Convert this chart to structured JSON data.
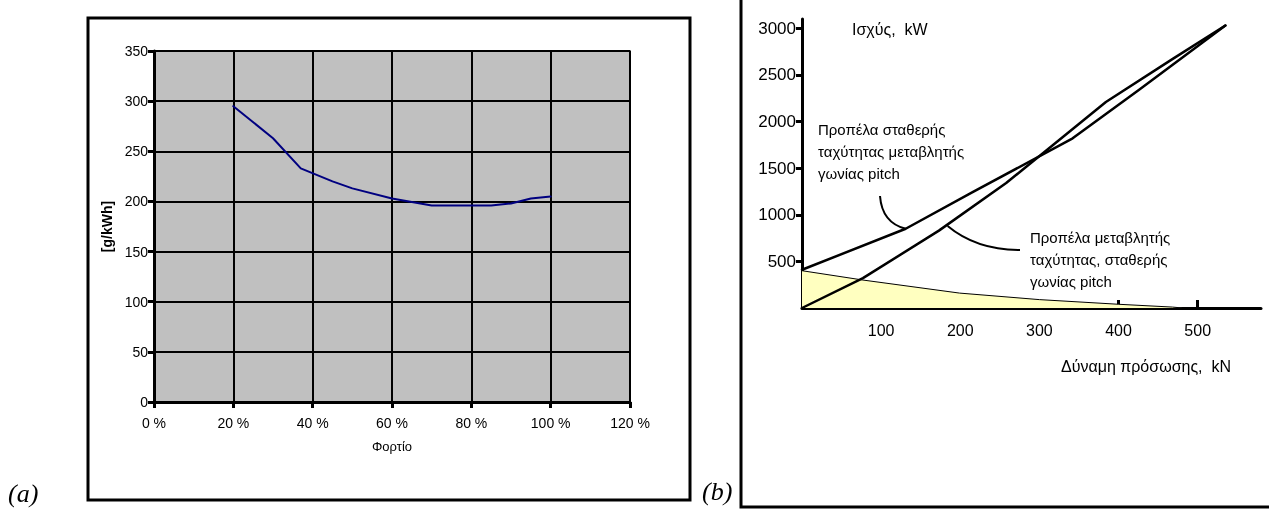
{
  "chart_data": [
    {
      "type": "line",
      "xlabel": "Φορτίο",
      "ylabel": "[g/kWh]",
      "x": [
        20,
        30,
        37,
        45,
        50,
        60,
        70,
        80,
        85,
        90,
        95,
        100
      ],
      "series": [
        {
          "color": "#000080",
          "values": [
            295,
            263,
            233,
            220,
            213,
            203,
            196,
            196,
            196,
            198,
            203,
            205
          ]
        }
      ],
      "xlim": [
        0,
        120
      ],
      "xticks": [
        {
          "value": 0,
          "label": "0 %"
        },
        {
          "value": 20,
          "label": "20 %"
        },
        {
          "value": 40,
          "label": "40 %"
        },
        {
          "value": 60,
          "label": "60 %"
        },
        {
          "value": 80,
          "label": "80 %"
        },
        {
          "value": 100,
          "label": "100 %"
        },
        {
          "value": 120,
          "label": "120 %"
        }
      ],
      "ylim": [
        0,
        350
      ],
      "yticks": [
        0,
        50,
        100,
        150,
        200,
        250,
        300,
        350
      ],
      "grid": true,
      "marker": "none",
      "annotations": [
        "(a)"
      ]
    },
    {
      "type": "line",
      "xlabel": "Δύναμη πρόσωσης,  kN",
      "ylabel": "Ισχύς,  kW",
      "series": [
        {
          "color": "#000000",
          "x": [
            0,
            131,
            215,
            342,
            426,
            535
          ],
          "values": [
            410,
            850,
            1240,
            1820,
            2340,
            3030
          ]
        },
        {
          "color": "#000000",
          "x": [
            0,
            77,
            173,
            258,
            384,
            468,
            535
          ],
          "values": [
            0,
            320,
            830,
            1340,
            2210,
            2670,
            3030
          ]
        },
        {
          "type": "area",
          "color": "#ffffc0",
          "x": [
            0,
            77,
            199,
            300,
            400,
            468,
            481
          ],
          "values": [
            400,
            300,
            160,
            90,
            40,
            10,
            0
          ]
        }
      ],
      "xlim": [
        0,
        580
      ],
      "xticks": [
        100,
        200,
        300,
        400,
        500
      ],
      "ylim": [
        0,
        3100
      ],
      "yticks": [
        500,
        1000,
        1500,
        2000,
        2500,
        3000
      ],
      "grid": false,
      "marker": "none",
      "annotations": [
        {
          "text": "Προπέλα σταθερής ταχύτητας μεταβλητής γωνίας pitch",
          "x": 131,
          "y": 850
        },
        {
          "text": "Προπέλα μεταβλητής ταχύτητας, σταθερής γωνίας pitch",
          "x": 184,
          "y": 880
        },
        "(b)"
      ]
    }
  ]
}
